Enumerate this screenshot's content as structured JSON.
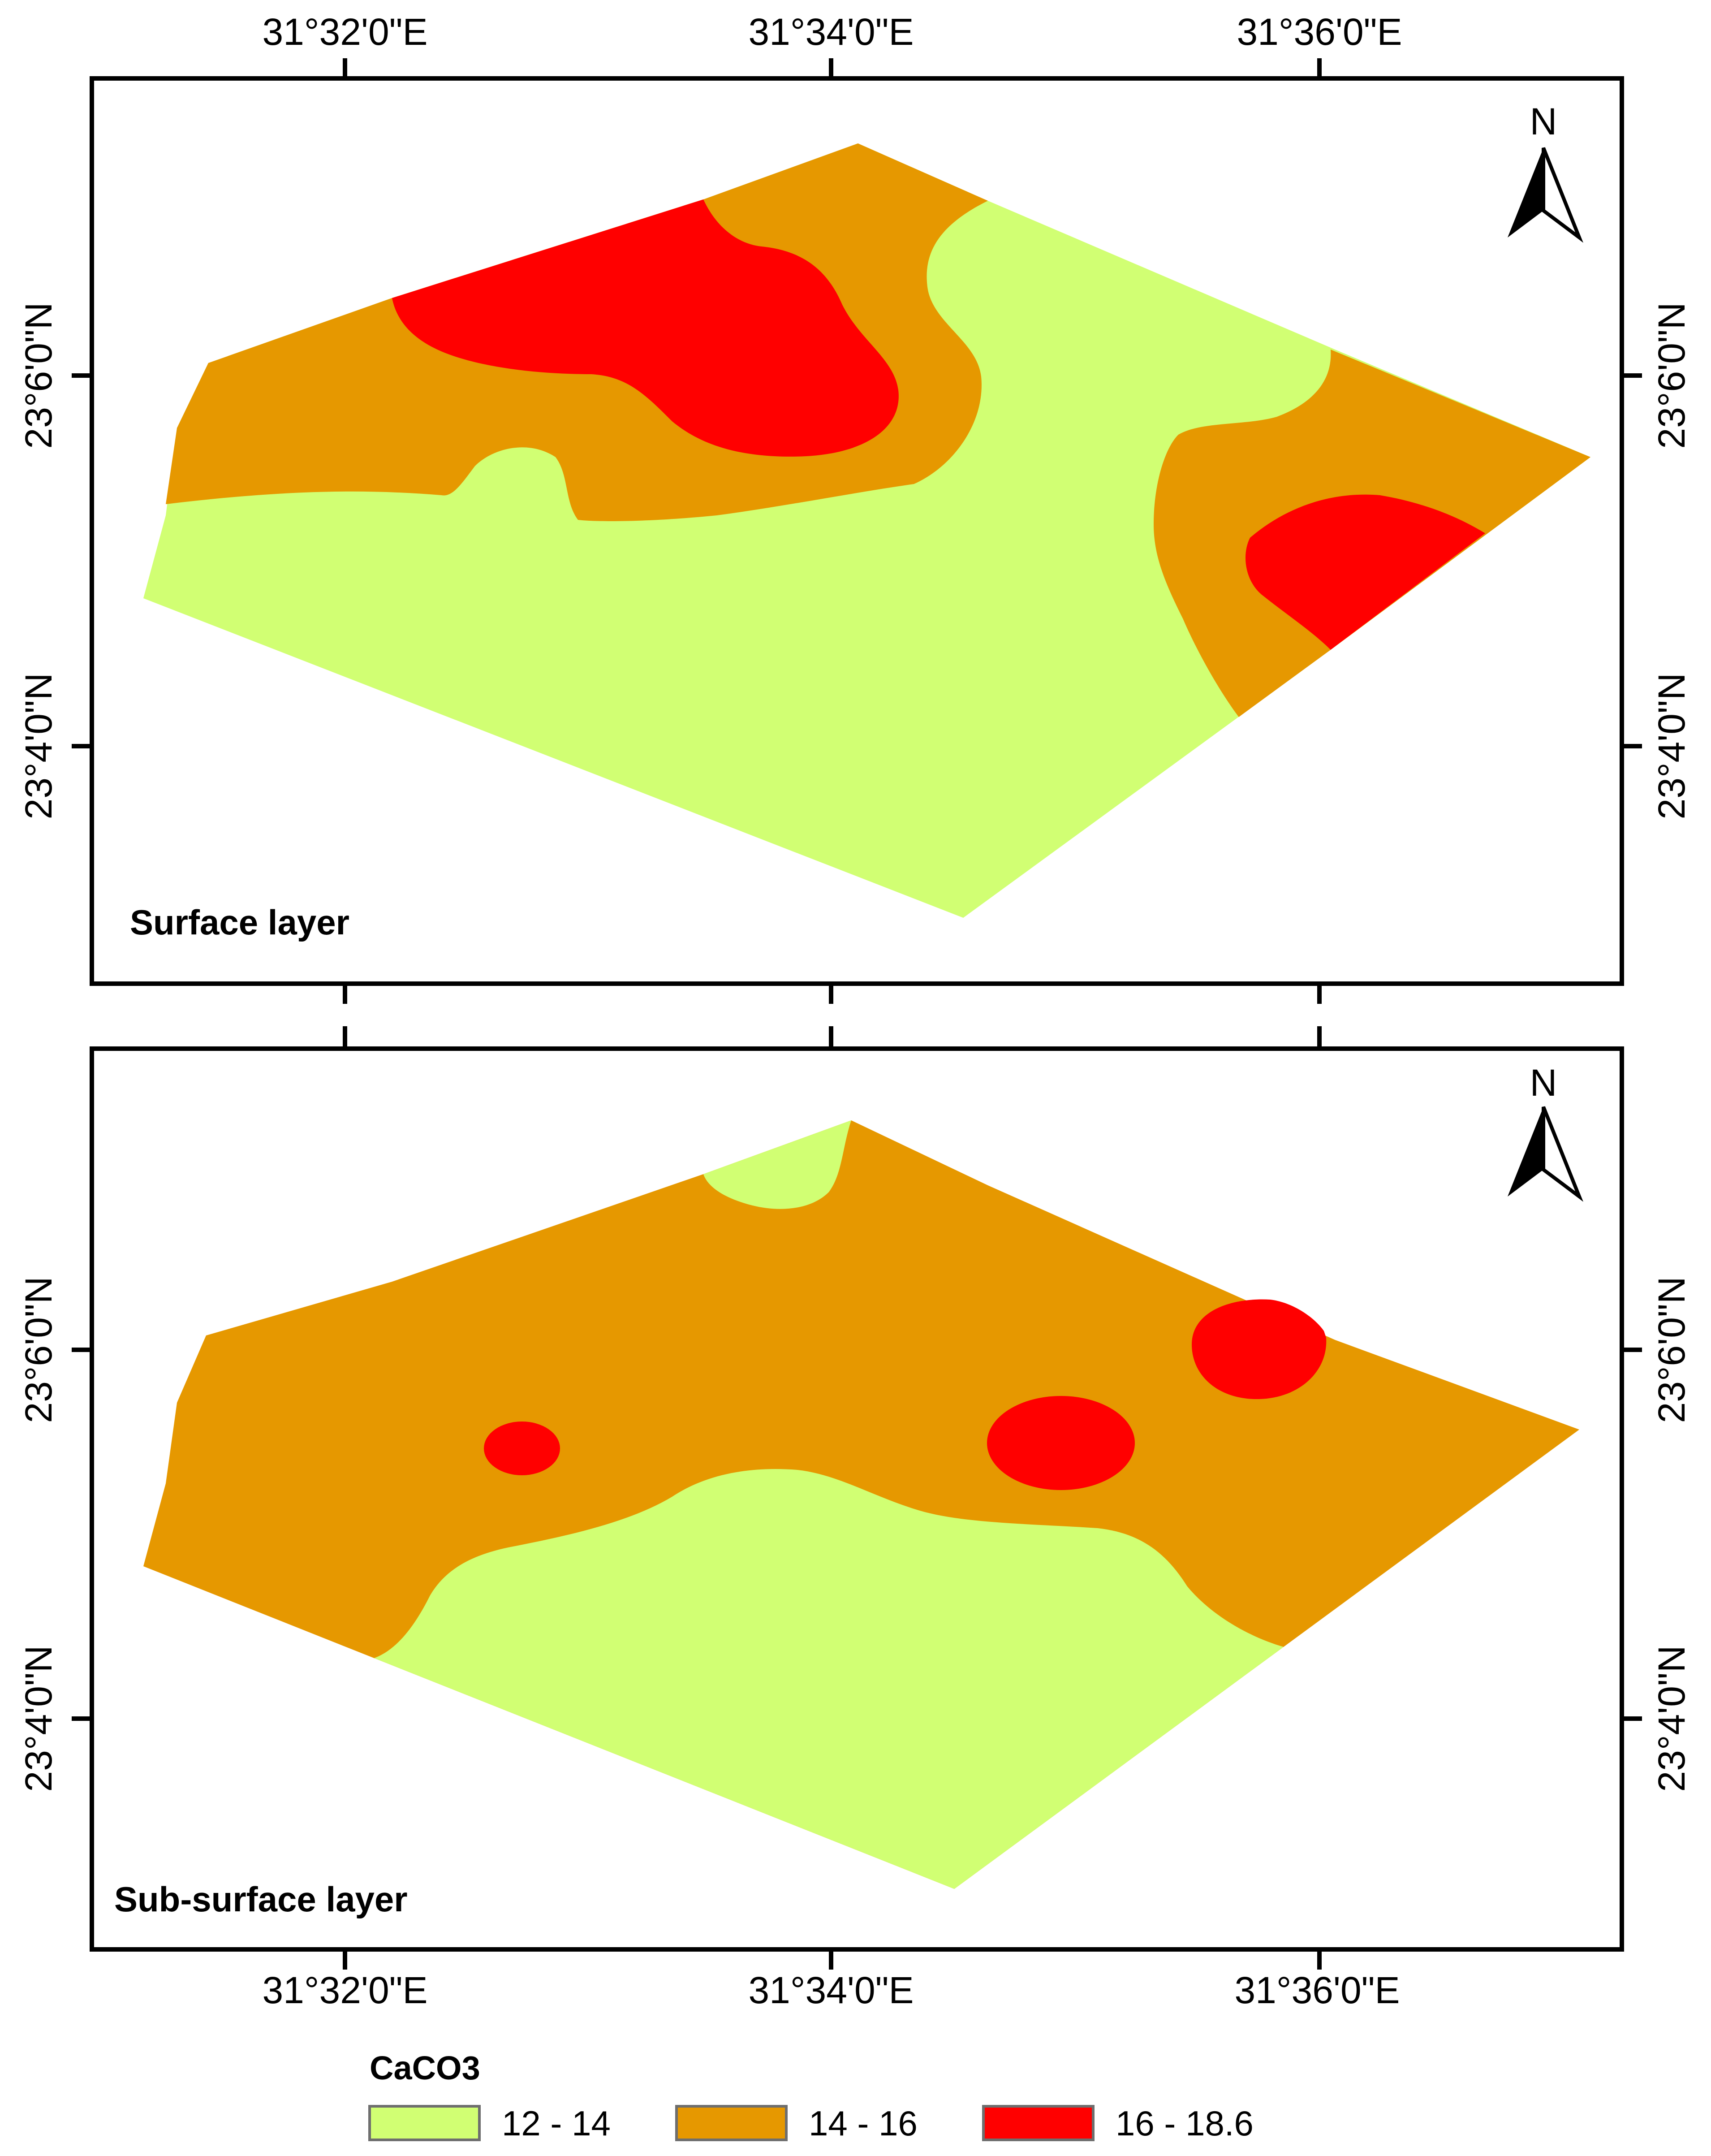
{
  "axes": {
    "lon_top": [
      "31°32'0\"E",
      "31°34'0\"E",
      "31°36'0\"E"
    ],
    "lon_bottom": [
      "31°32'0\"E",
      "31°34'0\"E",
      "31°36'0\"E"
    ],
    "lat": [
      "23°6'0\"N",
      "23°4'0\"N"
    ]
  },
  "panels": [
    {
      "label": "Surface layer",
      "north": "N"
    },
    {
      "label": "Sub-surface layer",
      "north": "N"
    }
  ],
  "legend": {
    "title": "CaCO3",
    "classes": [
      {
        "label": "12 - 14",
        "color": "#d1ff73"
      },
      {
        "label": "14 - 16",
        "color": "#e69800"
      },
      {
        "label": "16 - 18.6",
        "color": "#ff0000"
      }
    ]
  }
}
